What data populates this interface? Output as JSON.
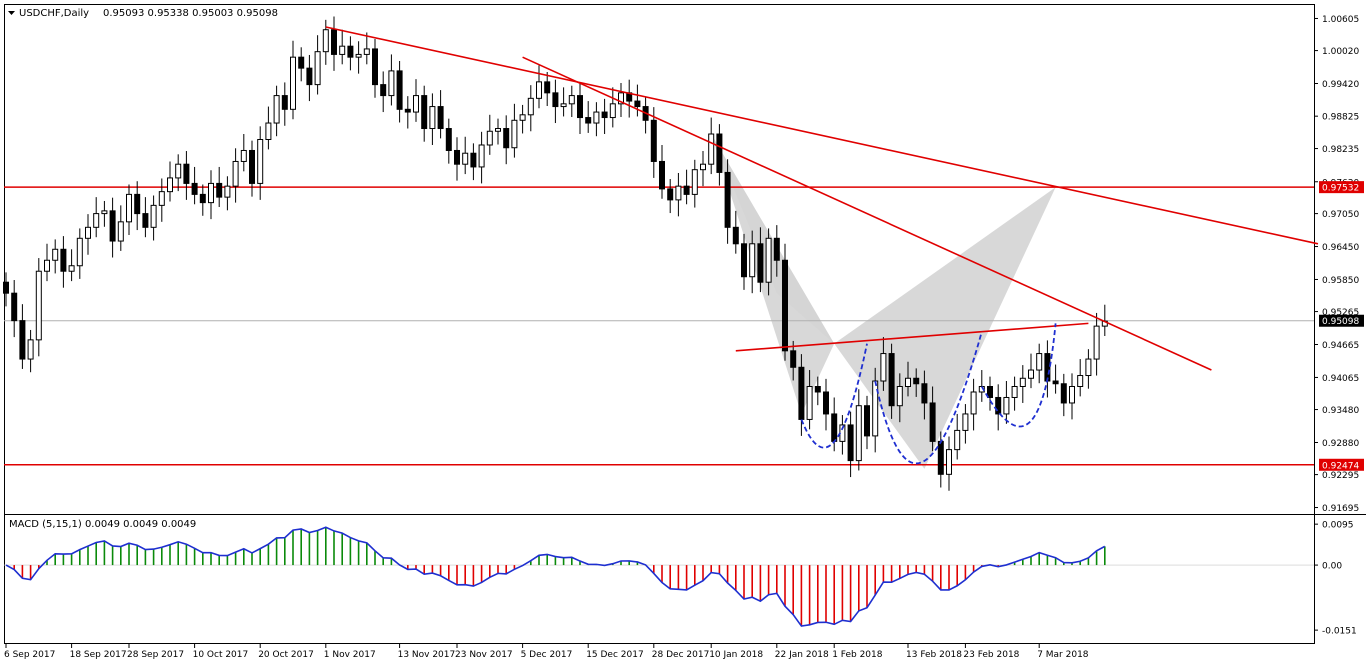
{
  "header": {
    "symbol_label": "USDCHF,Daily",
    "ohlc": "0.95093 0.95338 0.95003 0.95098"
  },
  "macd_panel": {
    "label": "MACD (5,15,1) 0.0049 0.0049 0.0049"
  },
  "colors": {
    "bull_body": "#ffffff",
    "bear_body": "#000000",
    "candle_outline": "#000000",
    "resistance_line": "#e00000",
    "trend_line": "#e00000",
    "pattern_fill": "#d4d4d4",
    "cup_curve": "#1f2fd0",
    "macd_signal": "#1e2fd0",
    "macd_hist_positive": "#0a8a0a",
    "macd_hist_negative": "#e00000",
    "price_tag_bg": "#e00000",
    "current_price_tag_bg": "#000000"
  },
  "chart_data": [
    {
      "type": "candlestick",
      "symbol": "USDCHF",
      "timeframe": "Daily",
      "ylim": [
        0.9165,
        1.0065
      ],
      "y_ticks": [
        "1.00605",
        "1.00020",
        "0.99420",
        "0.98825",
        "0.98235",
        "0.97630",
        "0.97050",
        "0.96450",
        "0.95850",
        "0.95265",
        "0.94665",
        "0.94065",
        "0.93480",
        "0.92880",
        "0.92295",
        "0.91695"
      ],
      "x_ticks": [
        "6 Sep 2017",
        "18 Sep 2017",
        "28 Sep 2017",
        "10 Oct 2017",
        "20 Oct 2017",
        "1 Nov 2017",
        "13 Nov 2017",
        "23 Nov 2017",
        "5 Dec 2017",
        "15 Dec 2017",
        "28 Dec 2017",
        "10 Jan 2018",
        "22 Jan 2018",
        "1 Feb 2018",
        "13 Feb 2018",
        "23 Feb 2018",
        "7 Mar 2018"
      ],
      "x_tick_index": [
        0,
        8,
        15,
        23,
        31,
        39,
        48,
        55,
        63,
        71,
        79,
        86,
        94,
        101,
        110,
        117,
        126
      ],
      "closes": [
        0.956,
        0.951,
        0.944,
        0.9475,
        0.96,
        0.962,
        0.964,
        0.96,
        0.961,
        0.966,
        0.968,
        0.9705,
        0.971,
        0.9655,
        0.969,
        0.974,
        0.9705,
        0.968,
        0.972,
        0.9745,
        0.977,
        0.9795,
        0.976,
        0.974,
        0.9725,
        0.976,
        0.9735,
        0.9755,
        0.98,
        0.982,
        0.976,
        0.984,
        0.987,
        0.992,
        0.9895,
        0.999,
        0.997,
        0.994,
        1.0,
        1.004,
        0.9995,
        1.001,
        0.999,
        0.9995,
        1.0005,
        0.994,
        0.992,
        0.9965,
        0.9895,
        0.989,
        0.992,
        0.986,
        0.99,
        0.986,
        0.982,
        0.9795,
        0.9815,
        0.979,
        0.983,
        0.9855,
        0.986,
        0.9825,
        0.9875,
        0.9885,
        0.9915,
        0.9945,
        0.9925,
        0.99,
        0.9905,
        0.992,
        0.988,
        0.987,
        0.989,
        0.988,
        0.9905,
        0.9925,
        0.991,
        0.99,
        0.9875,
        0.98,
        0.975,
        0.973,
        0.9755,
        0.974,
        0.9785,
        0.9795,
        0.985,
        0.978,
        0.968,
        0.965,
        0.959,
        0.965,
        0.958,
        0.966,
        0.962,
        0.9455,
        0.9425,
        0.933,
        0.939,
        0.938,
        0.934,
        0.929,
        0.932,
        0.9255,
        0.9355,
        0.93,
        0.94,
        0.945,
        0.9355,
        0.939,
        0.9405,
        0.9395,
        0.936,
        0.929,
        0.923,
        0.9275,
        0.931,
        0.934,
        0.938,
        0.939,
        0.937,
        0.934,
        0.937,
        0.939,
        0.9405,
        0.942,
        0.945,
        0.94,
        0.9395,
        0.936,
        0.939,
        0.941,
        0.944,
        0.95,
        0.9509
      ],
      "resistance_levels": [
        "0.97532",
        "0.92474"
      ],
      "current_price": "0.95098"
    },
    {
      "type": "histogram",
      "indicator": "MACD (5,15,1)",
      "ylim": [
        -0.016,
        0.01
      ],
      "y_ticks": [
        "0.0095",
        "0.00",
        "-0.0151"
      ]
    }
  ]
}
